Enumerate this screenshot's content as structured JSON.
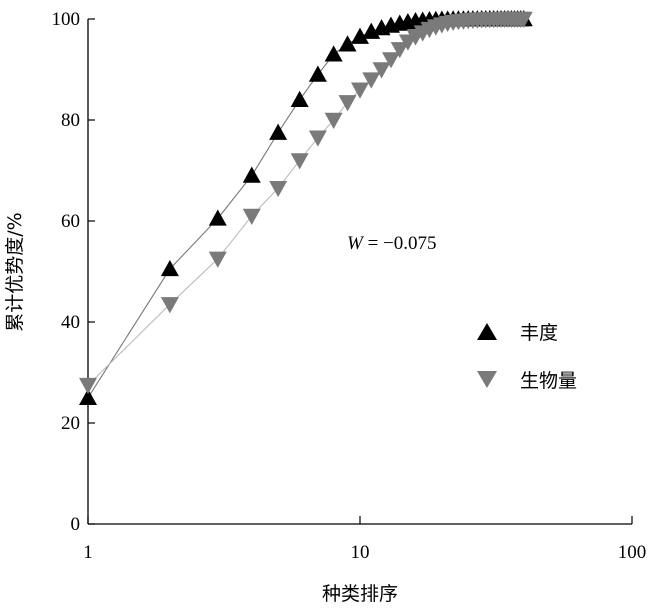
{
  "chart_data": {
    "type": "line",
    "title": "",
    "xlabel": "种类排序",
    "ylabel": "累计优势度/%",
    "x_scale": "log",
    "xlim": [
      1,
      100
    ],
    "ylim": [
      0,
      100
    ],
    "x_ticks": [
      1,
      10,
      100
    ],
    "y_ticks": [
      0,
      20,
      40,
      60,
      80,
      100
    ],
    "grid": false,
    "legend_position": "center-right",
    "annotation": {
      "italic_part": "W",
      "rest": " = −0.075"
    },
    "series": [
      {
        "name": "丰度",
        "marker": "triangle-up",
        "color": "#000000",
        "line_color": "#777777",
        "x": [
          1,
          2,
          3,
          4,
          5,
          6,
          7,
          8,
          9,
          10,
          11,
          12,
          13,
          14,
          15,
          16,
          17,
          18,
          19,
          20,
          21,
          22,
          23,
          24,
          25,
          26,
          27,
          28,
          29,
          30,
          31,
          32,
          33,
          34,
          35,
          36,
          37,
          38,
          39,
          40
        ],
        "y": [
          25,
          50.5,
          60.5,
          69,
          77.5,
          84,
          89,
          93,
          95,
          96.5,
          97.5,
          98.2,
          98.7,
          99.1,
          99.4,
          99.6,
          99.7,
          99.8,
          99.85,
          99.9,
          99.92,
          99.94,
          99.95,
          99.96,
          99.97,
          99.98,
          99.98,
          99.99,
          99.99,
          99.99,
          100,
          100,
          100,
          100,
          100,
          100,
          100,
          100,
          100,
          100
        ]
      },
      {
        "name": "生物量",
        "marker": "triangle-down",
        "color": "#7a7a7a",
        "line_color": "#bbbbbb",
        "x": [
          1,
          2,
          3,
          4,
          5,
          6,
          7,
          8,
          9,
          10,
          11,
          12,
          13,
          14,
          15,
          16,
          17,
          18,
          19,
          20,
          21,
          22,
          23,
          24,
          25,
          26,
          27,
          28,
          29,
          30,
          31,
          32,
          33,
          34,
          35,
          36,
          37,
          38,
          39,
          40
        ],
        "y": [
          27.5,
          43.5,
          52.5,
          61,
          66.5,
          72,
          76.5,
          80,
          83.5,
          86,
          88,
          90,
          92,
          94,
          95.5,
          96.5,
          97.3,
          98,
          98.5,
          98.9,
          99.2,
          99.4,
          99.55,
          99.65,
          99.75,
          99.8,
          99.85,
          99.9,
          99.92,
          99.94,
          99.96,
          99.97,
          99.98,
          99.99,
          100,
          100,
          100,
          100,
          100,
          100
        ]
      }
    ]
  }
}
